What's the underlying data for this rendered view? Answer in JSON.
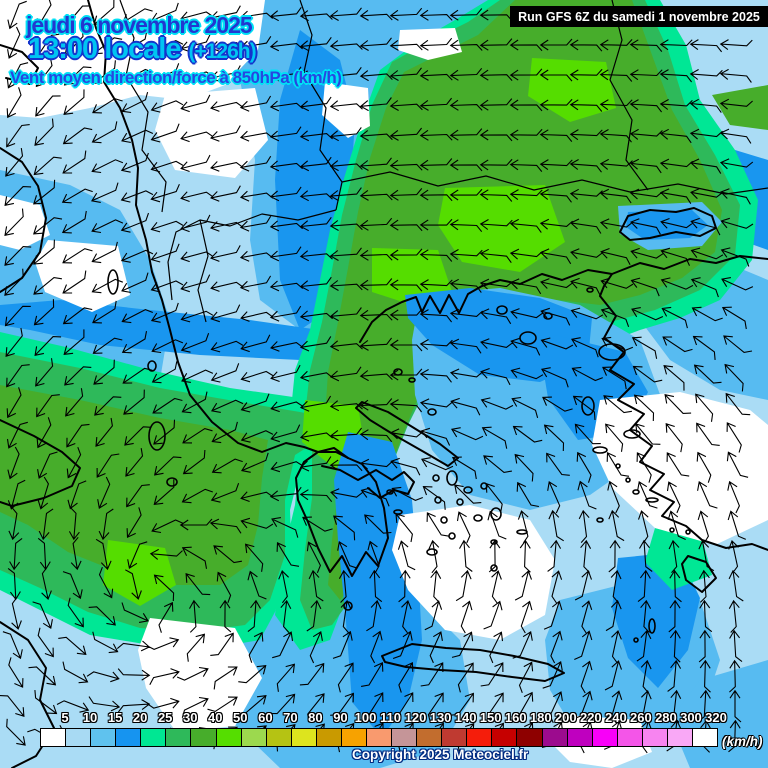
{
  "title": {
    "date": "jeudi 6 novembre 2025",
    "time": "13:00 locale",
    "offset": "(+126h)",
    "subtitle": "Vent moyen direction/force à 850hPa (km/h)"
  },
  "run_box": {
    "label": "Run GFS 6Z du samedi 1 novembre 2025"
  },
  "footer": {
    "copyright": "Copyright 2025 Meteociel.fr",
    "units": "(km/h)"
  },
  "legend": {
    "values": [
      5,
      10,
      15,
      20,
      25,
      30,
      40,
      50,
      60,
      70,
      80,
      90,
      100,
      110,
      120,
      130,
      140,
      150,
      160,
      180,
      200,
      220,
      240,
      260,
      280,
      300,
      320
    ],
    "colors": [
      "#ffffff",
      "#a8daf3",
      "#5fc2ee",
      "#1694f0",
      "#00e793",
      "#2eb95a",
      "#47ad2b",
      "#55de00",
      "#9cd94e",
      "#b5c313",
      "#dde41e",
      "#c99a00",
      "#f7a200",
      "#f99a6e",
      "#c59598",
      "#c26d2e",
      "#bf3a31",
      "#f51d0b",
      "#c60000",
      "#8e0000",
      "#9c0b8e",
      "#bf00bf",
      "#f800f8",
      "#f455e8",
      "#f784f0",
      "#f9a8f6",
      "#ffffff"
    ]
  },
  "palette": {
    "base": "#aadcf5",
    "white": "#ffffff",
    "mid_blue": "#57bbf1",
    "dodger": "#1996ef",
    "turquoise": "#00e795",
    "sea_green": "#2eb95a",
    "green": "#47ad2b",
    "bright_green": "#55dd00",
    "coast": "#000000"
  },
  "wind_field": {
    "grid_step": 30,
    "margin": 15,
    "arrow_length": 26,
    "coarse_step": 96,
    "angles_deg": [
      [
        255,
        225,
        195,
        185,
        183,
        181,
        180,
        179,
        178
      ],
      [
        245,
        215,
        195,
        188,
        185,
        182,
        179,
        176,
        173
      ],
      [
        230,
        205,
        194,
        187,
        183,
        179,
        175,
        171,
        167
      ],
      [
        228,
        210,
        196,
        188,
        181,
        173,
        166,
        159,
        153
      ],
      [
        238,
        222,
        206,
        194,
        184,
        168,
        152,
        138,
        128
      ],
      [
        254,
        242,
        220,
        196,
        168,
        140,
        115,
        120,
        112
      ],
      [
        266,
        295,
        135,
        105,
        95,
        80,
        75,
        92,
        102
      ],
      [
        295,
        340,
        25,
        50,
        60,
        55,
        70,
        85,
        95
      ],
      [
        315,
        5,
        25,
        45,
        55,
        50,
        65,
        80,
        90
      ]
    ]
  }
}
